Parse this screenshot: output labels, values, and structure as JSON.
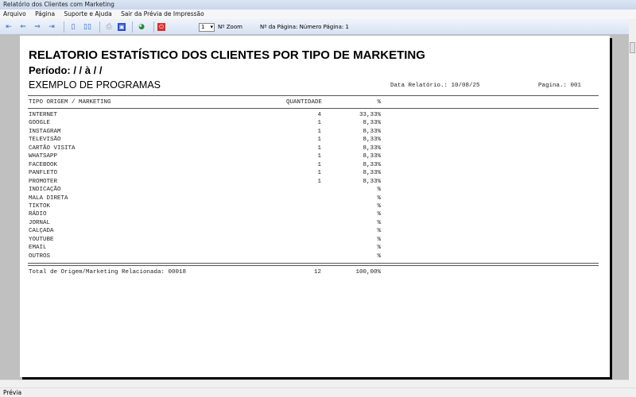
{
  "window": {
    "title": "Relatório dos Clientes com Marketing"
  },
  "menu": [
    "Arquivo",
    "Página",
    "Suporte e Ajuda",
    "Sair da Prévia de Impressão"
  ],
  "toolbar": {
    "zoom_value": "1",
    "zoom_label": "Nº Zoom",
    "page_info": "Nº da Página: Número Página: 1"
  },
  "report": {
    "title": "RELATORIO ESTATÍSTICO DOS CLIENTES POR TIPO DE MARKETING",
    "period": "Período:  / /  à  / /",
    "company": "EXEMPLO DE PROGRAMAS",
    "date": "Data Relatório.: 10/08/25",
    "page": "Pagina.: 001",
    "columns": {
      "type": "TIPO ORIGEM / MARKETING",
      "qty": "QUANTIDADE",
      "pct": "%"
    },
    "rows": [
      {
        "type": "INTERNET",
        "qty": "4",
        "pct": "33,33%"
      },
      {
        "type": "GOOGLE",
        "qty": "1",
        "pct": "8,33%"
      },
      {
        "type": "INSTAGRAM",
        "qty": "1",
        "pct": "8,33%"
      },
      {
        "type": "TELEVISÃO",
        "qty": "1",
        "pct": "8,33%"
      },
      {
        "type": "CARTÃO VISITA",
        "qty": "1",
        "pct": "8,33%"
      },
      {
        "type": "WHATSAPP",
        "qty": "1",
        "pct": "8,33%"
      },
      {
        "type": "FACEBOOK",
        "qty": "1",
        "pct": "8,33%"
      },
      {
        "type": "PANFLETO",
        "qty": "1",
        "pct": "8,33%"
      },
      {
        "type": "PROMOTER",
        "qty": "1",
        "pct": "8,33%"
      },
      {
        "type": "INDICAÇÃO",
        "qty": "",
        "pct": "%"
      },
      {
        "type": "MALA DIRETA",
        "qty": "",
        "pct": "%"
      },
      {
        "type": "TIKTOK",
        "qty": "",
        "pct": "%"
      },
      {
        "type": "RÁDIO",
        "qty": "",
        "pct": "%"
      },
      {
        "type": "JORNAL",
        "qty": "",
        "pct": "%"
      },
      {
        "type": "CALÇADA",
        "qty": "",
        "pct": "%"
      },
      {
        "type": "YOUTUBE",
        "qty": "",
        "pct": "%"
      },
      {
        "type": "EMAIL",
        "qty": "",
        "pct": "%"
      },
      {
        "type": "OUTROS",
        "qty": "",
        "pct": "%"
      }
    ],
    "total": {
      "label": "Total de Origem/Marketing Relacionada: 00018",
      "qty": "12",
      "pct": "100,00%"
    }
  },
  "status": "Prévia"
}
